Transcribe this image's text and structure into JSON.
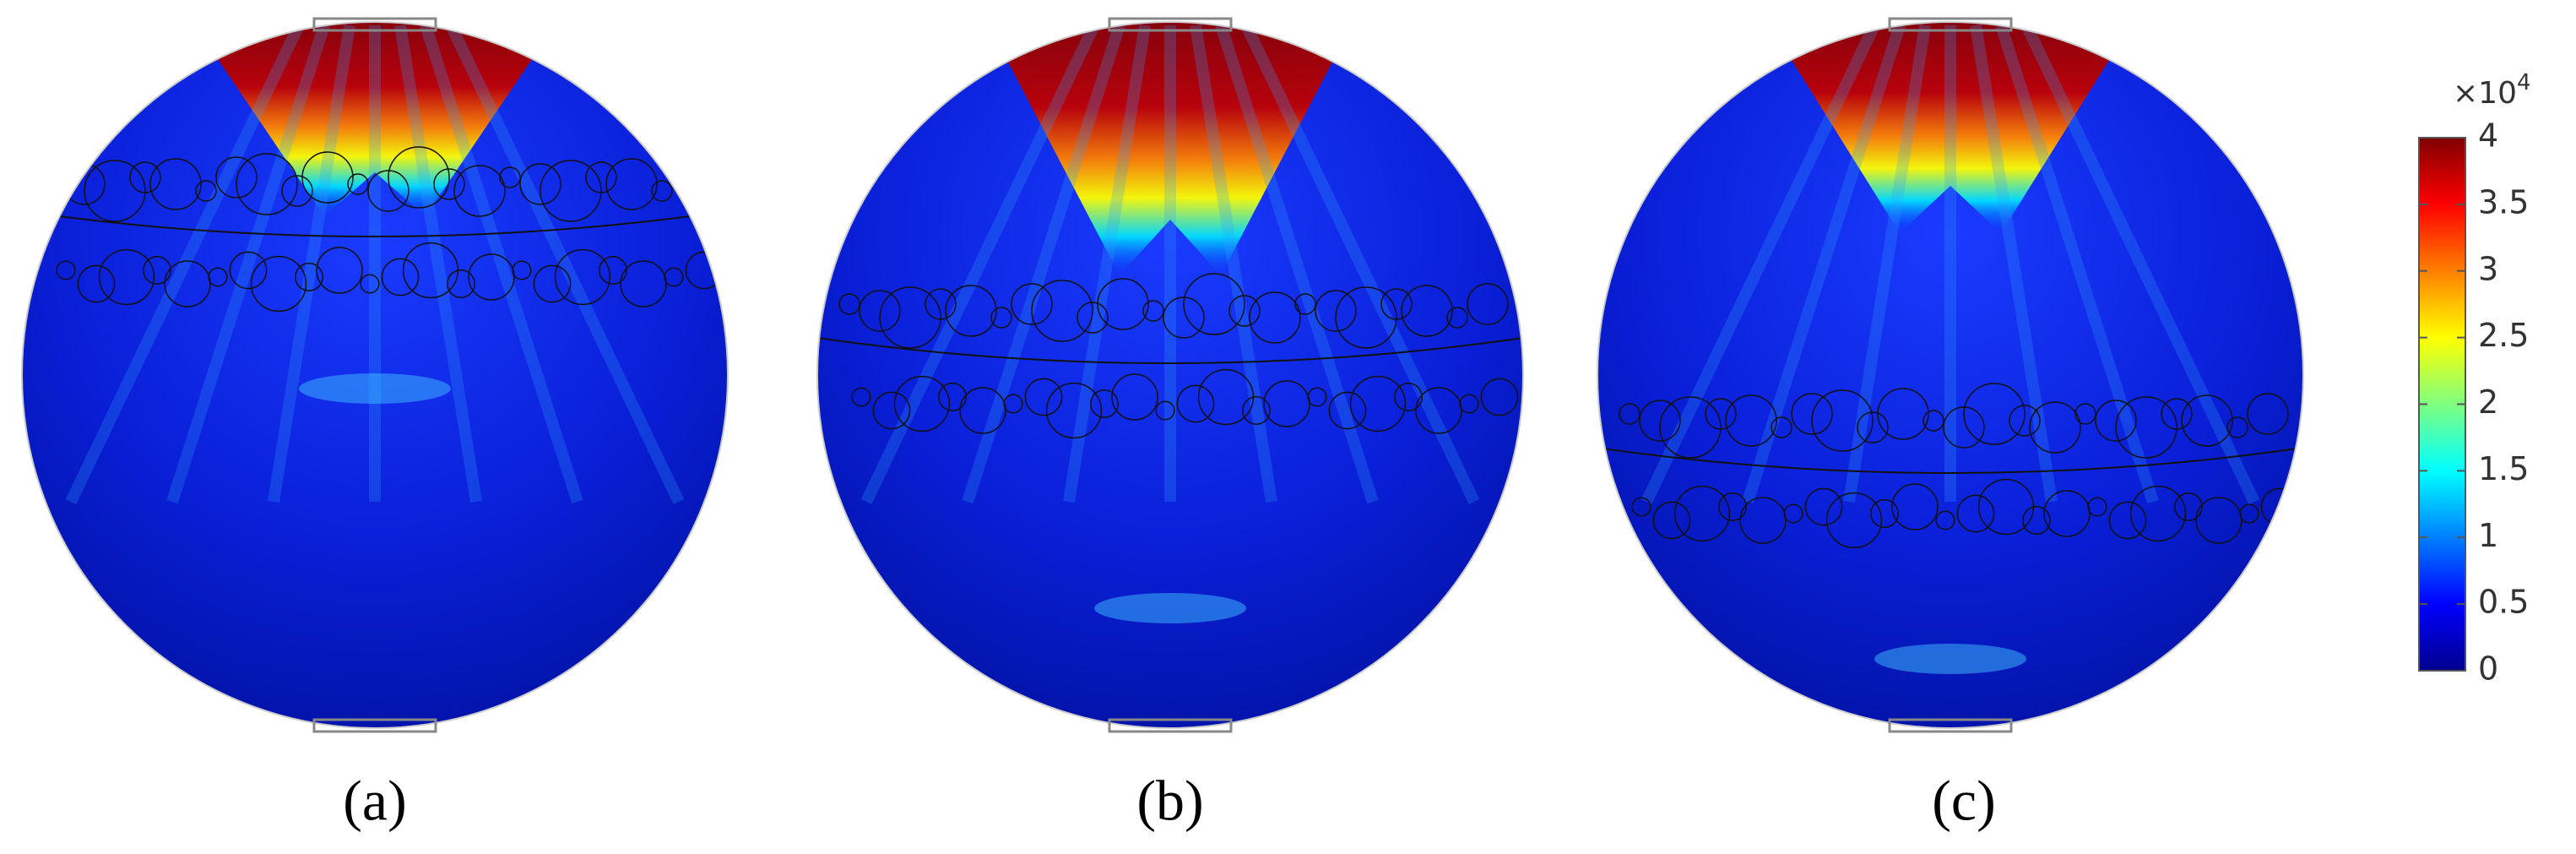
{
  "panels": [
    {
      "label": "(a)"
    },
    {
      "label": "(b)"
    },
    {
      "label": "(c)"
    }
  ],
  "colorbar": {
    "multiplier_base": "×10",
    "multiplier_exponent": "4",
    "range": [
      0,
      4
    ],
    "ticks": [
      0,
      0.5,
      1,
      1.5,
      2,
      2.5,
      3,
      3.5,
      4
    ]
  }
}
